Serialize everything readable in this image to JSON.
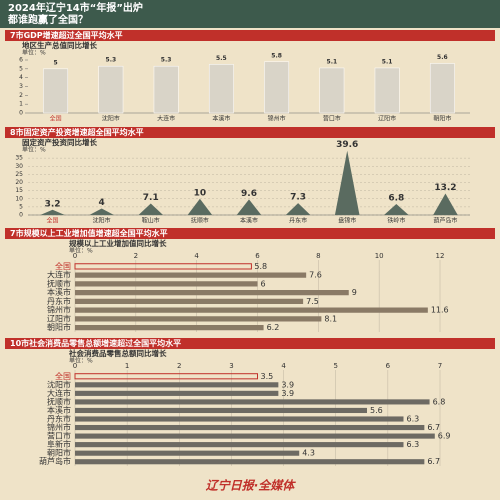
{
  "header": {
    "title": [
      "2024年辽宁14市“年报”出炉",
      "都谁跑赢了全国？"
    ]
  },
  "chart_data": [
    {
      "type": "bar",
      "heading": "7市GDP增速超过全国平均水平",
      "title": "地区生产总值同比增长",
      "unit": "单位：%",
      "categories": [
        "全国",
        "沈阳市",
        "大连市",
        "本溪市",
        "锦州市",
        "营口市",
        "辽阳市",
        "朝阳市"
      ],
      "values": [
        5,
        5.3,
        5.3,
        5.5,
        5.8,
        5.1,
        5.1,
        5.6
      ],
      "ylim": [
        0,
        6
      ],
      "yticks": [
        0,
        1,
        2,
        3,
        4,
        5,
        6
      ],
      "color": "#d9d4c8",
      "grid": false
    },
    {
      "type": "spike",
      "heading": "8市固定资产投资增速超全国平均水平",
      "title": "固定资产投资同比增长",
      "unit": "单位：%",
      "categories": [
        "全国",
        "沈阳市",
        "鞍山市",
        "抚顺市",
        "本溪市",
        "丹东市",
        "盘锦市",
        "铁岭市",
        "葫芦岛市"
      ],
      "values": [
        3.2,
        4,
        7.1,
        10,
        9.6,
        7.3,
        39.6,
        6.8,
        13.2
      ],
      "ylim": [
        0,
        40
      ],
      "yticks": [
        0,
        5,
        10,
        15,
        20,
        25,
        30,
        35
      ],
      "color": "#5a6b60",
      "grid": true
    },
    {
      "type": "hbar",
      "heading": "7市规模以上工业增加值增速超全国平均水平",
      "title": "规模以上工业增加值同比增长",
      "unit": "单位：%",
      "categories": [
        "全国",
        "大连市",
        "抚顺市",
        "本溪市",
        "丹东市",
        "锦州市",
        "辽阳市",
        "朝阳市"
      ],
      "values": [
        5.8,
        7.6,
        6,
        9,
        7.5,
        11.6,
        8.1,
        6.2
      ],
      "ylim": [
        0,
        12
      ],
      "yticks": [
        0,
        2,
        4,
        6,
        8,
        10,
        12
      ],
      "color": "#8a7a66",
      "grid": true
    },
    {
      "type": "hbar",
      "heading": "10市社会消费品零售总额增速超过全国平均水平",
      "title": "社会消费品零售总额同比增长",
      "unit": "单位：%",
      "categories": [
        "全国",
        "沈阳市",
        "大连市",
        "抚顺市",
        "本溪市",
        "丹东市",
        "锦州市",
        "营口市",
        "阜新市",
        "朝阳市",
        "葫芦岛市"
      ],
      "values": [
        3.5,
        3.9,
        3.9,
        6.8,
        5.6,
        6.3,
        6.7,
        6.9,
        6.3,
        4.3,
        6.7
      ],
      "ylim": [
        0,
        7
      ],
      "yticks": [
        0,
        1,
        2,
        3,
        4,
        5,
        6,
        7
      ],
      "color": "#6d6a63",
      "grid": true
    }
  ],
  "footer": {
    "text": "辽宁日报·全媒体"
  }
}
